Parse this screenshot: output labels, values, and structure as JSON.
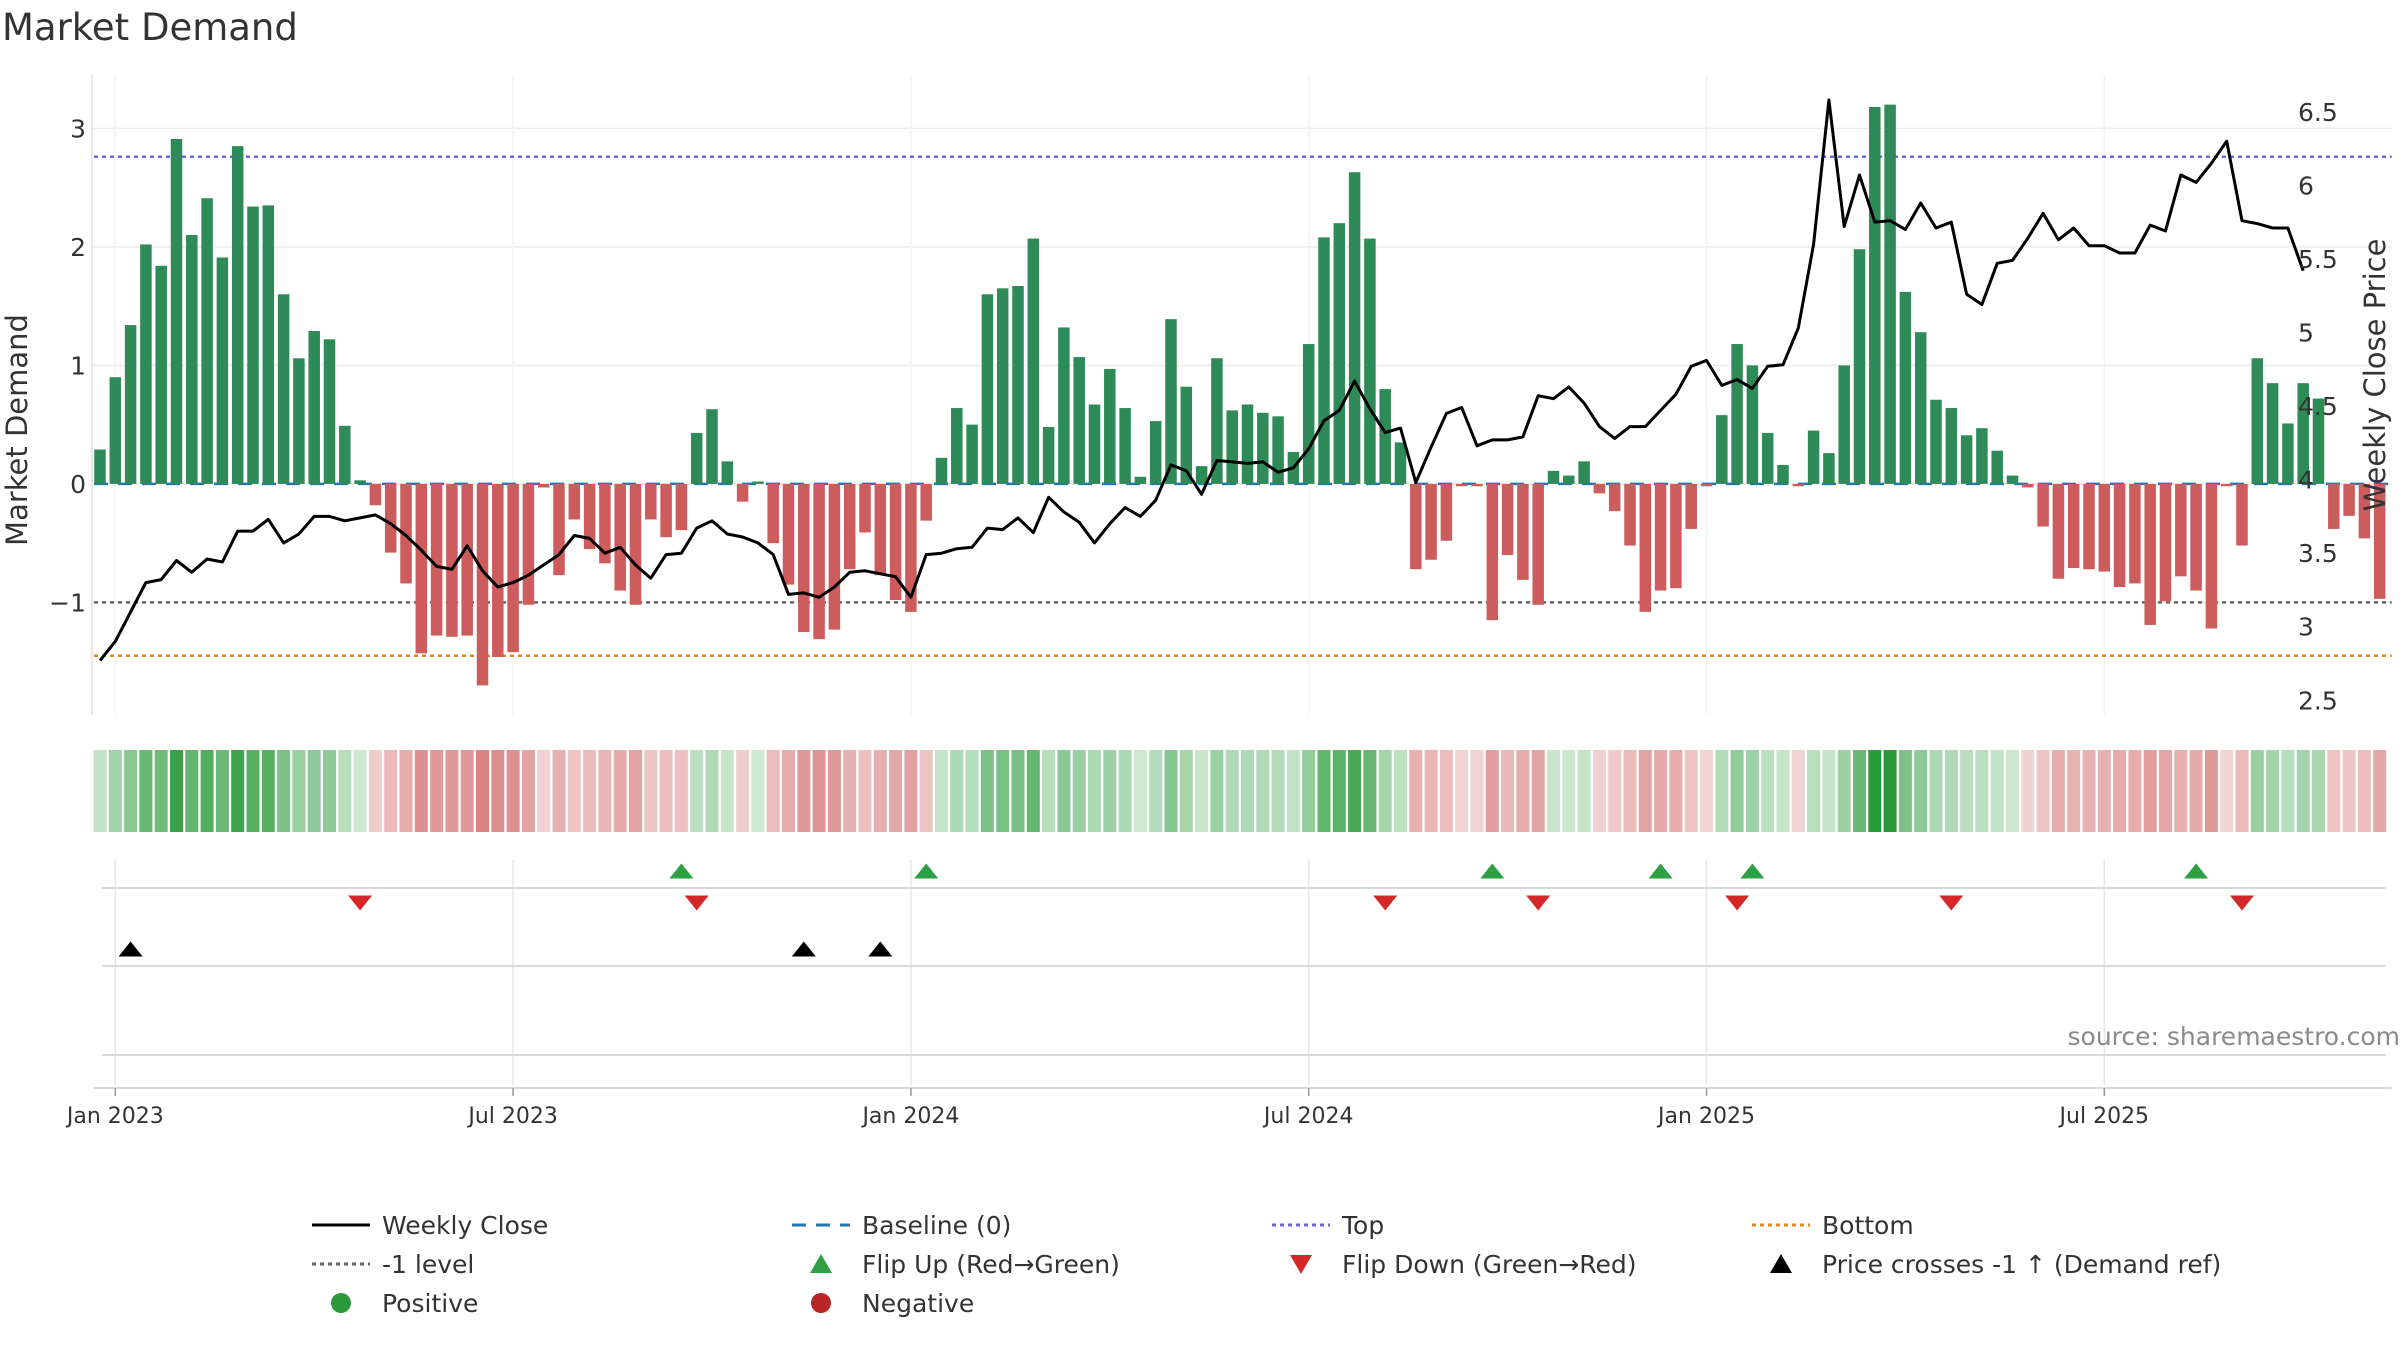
{
  "title": "Market Demand",
  "source": "source: sharemaestro.com",
  "legend": [
    {
      "label": "Weekly Close",
      "kind": "line",
      "color": "#000000",
      "dash": ""
    },
    {
      "label": "Baseline (0)",
      "kind": "line",
      "color": "#1f77b4",
      "dash": "14,10"
    },
    {
      "label": "Top",
      "kind": "line",
      "color": "#6a6ad8",
      "dash": "4,4"
    },
    {
      "label": "Bottom",
      "kind": "line",
      "color": "#e38a1e",
      "dash": "4,4"
    },
    {
      "label": "-1 level",
      "kind": "line",
      "color": "#666666",
      "dash": "4,4"
    },
    {
      "label": "Flip Up (Red→Green)",
      "kind": "tri-up",
      "color": "#2ca043"
    },
    {
      "label": "Flip Down (Green→Red)",
      "kind": "tri-down",
      "color": "#d62728"
    },
    {
      "label": "Price crosses -1 ↑ (Demand ref)",
      "kind": "tri-up",
      "color": "#000000"
    },
    {
      "label": "Positive",
      "kind": "dot",
      "color": "#2a9a3a"
    },
    {
      "label": "Negative",
      "kind": "dot",
      "color": "#b82525"
    }
  ],
  "chart_data": {
    "type": "bar",
    "title": "Market Demand",
    "ylabel": "Market Demand",
    "y2label": "Weekly Close Price",
    "ylim": [
      -1.95,
      3.45
    ],
    "y2lim": [
      2.4,
      6.75
    ],
    "yticks": [
      -1,
      0,
      1,
      2,
      3
    ],
    "y2ticks": [
      2.5,
      3,
      3.5,
      4,
      4.5,
      5,
      5.5,
      6,
      6.5
    ],
    "xticks": [
      "Jan 2023",
      "Jul 2023",
      "Jan 2024",
      "Jul 2024",
      "Jan 2025",
      "Jul 2025"
    ],
    "xtick_weeks": [
      1,
      27,
      53,
      79,
      105,
      131
    ],
    "x_start": "2022-12-26",
    "week_step_days": 7,
    "reference_lines": {
      "top": 2.76,
      "minus_one": -1.0,
      "bottom": -1.45,
      "baseline": 0
    },
    "grid": true,
    "colors": {
      "positive": "#2e8b57",
      "negative": "#cd5c5c",
      "close": "#000000"
    },
    "demand": [
      0.29,
      0.9,
      1.34,
      2.02,
      1.84,
      2.91,
      2.1,
      2.41,
      1.91,
      2.85,
      2.34,
      2.35,
      1.6,
      1.06,
      1.29,
      1.22,
      0.49,
      0.03,
      -0.18,
      -0.58,
      -0.84,
      -1.43,
      -1.28,
      -1.29,
      -1.28,
      -1.7,
      -1.46,
      -1.42,
      -1.02,
      -0.03,
      -0.77,
      -0.3,
      -0.55,
      -0.67,
      -0.9,
      -1.02,
      -0.3,
      -0.45,
      -0.39,
      0.43,
      0.63,
      0.19,
      -0.15,
      0.02,
      -0.5,
      -0.85,
      -1.25,
      -1.31,
      -1.23,
      -0.72,
      -0.41,
      -0.77,
      -0.98,
      -1.08,
      -0.31,
      0.22,
      0.64,
      0.5,
      1.6,
      1.65,
      1.67,
      2.07,
      0.48,
      1.32,
      1.07,
      0.67,
      0.97,
      0.64,
      0.06,
      0.53,
      1.39,
      0.82,
      0.15,
      1.06,
      0.62,
      0.67,
      0.6,
      0.57,
      0.27,
      1.18,
      2.08,
      2.2,
      2.63,
      2.07,
      0.8,
      0.35,
      -0.72,
      -0.64,
      -0.48,
      -0.02,
      -0.02,
      -1.15,
      -0.6,
      -0.81,
      -1.02,
      0.11,
      0.07,
      0.19,
      -0.08,
      -0.23,
      -0.52,
      -1.08,
      -0.9,
      -0.88,
      -0.38,
      -0.02,
      0.58,
      1.18,
      1.0,
      0.43,
      0.16,
      -0.02,
      0.45,
      0.26,
      1.0,
      1.98,
      3.18,
      3.2,
      1.62,
      1.28,
      0.71,
      0.64,
      0.41,
      0.47,
      0.28,
      0.07,
      -0.03,
      -0.36,
      -0.8,
      -0.71,
      -0.72,
      -0.74,
      -0.87,
      -0.84,
      -1.19,
      -0.99,
      -0.78,
      -0.9,
      -1.22,
      -0.02,
      -0.52,
      1.06,
      0.85,
      0.51,
      0.85,
      0.72,
      -0.38,
      -0.27,
      -0.46,
      -0.97
    ],
    "close": [
      2.77,
      2.9,
      3.1,
      3.3,
      3.32,
      3.45,
      3.37,
      3.46,
      3.44,
      3.65,
      3.65,
      3.73,
      3.57,
      3.63,
      3.75,
      3.75,
      3.72,
      3.74,
      3.76,
      3.7,
      3.62,
      3.52,
      3.41,
      3.39,
      3.55,
      3.38,
      3.27,
      3.3,
      3.35,
      3.42,
      3.49,
      3.62,
      3.6,
      3.5,
      3.54,
      3.42,
      3.33,
      3.49,
      3.5,
      3.67,
      3.72,
      3.63,
      3.61,
      3.57,
      3.49,
      3.22,
      3.23,
      3.2,
      3.27,
      3.37,
      3.38,
      3.36,
      3.34,
      3.2,
      3.49,
      3.5,
      3.53,
      3.54,
      3.67,
      3.66,
      3.74,
      3.64,
      3.88,
      3.78,
      3.71,
      3.57,
      3.7,
      3.81,
      3.75,
      3.86,
      4.1,
      4.06,
      3.9,
      4.13,
      4.12,
      4.11,
      4.12,
      4.05,
      4.08,
      4.21,
      4.4,
      4.47,
      4.67,
      4.48,
      4.32,
      4.35,
      3.98,
      4.22,
      4.45,
      4.49,
      4.23,
      4.27,
      4.27,
      4.29,
      4.57,
      4.55,
      4.63,
      4.52,
      4.36,
      4.28,
      4.36,
      4.36,
      4.47,
      4.58,
      4.77,
      4.81,
      4.64,
      4.68,
      4.62,
      4.77,
      4.78,
      5.03,
      5.6,
      6.58,
      5.72,
      6.07,
      5.75,
      5.76,
      5.7,
      5.88,
      5.71,
      5.75,
      5.26,
      5.19,
      5.47,
      5.49,
      5.64,
      5.81,
      5.63,
      5.71,
      5.59,
      5.59,
      5.54,
      5.54,
      5.73,
      5.69,
      6.07,
      6.02,
      6.15,
      6.3,
      5.76,
      5.74,
      5.71,
      5.71,
      5.42
    ],
    "flip_up_weeks": [
      38,
      54,
      91,
      102,
      108,
      137
    ],
    "flip_down_weeks": [
      17,
      39,
      84,
      94,
      107,
      121,
      140
    ],
    "cross_weeks": [
      2,
      46,
      51
    ]
  }
}
